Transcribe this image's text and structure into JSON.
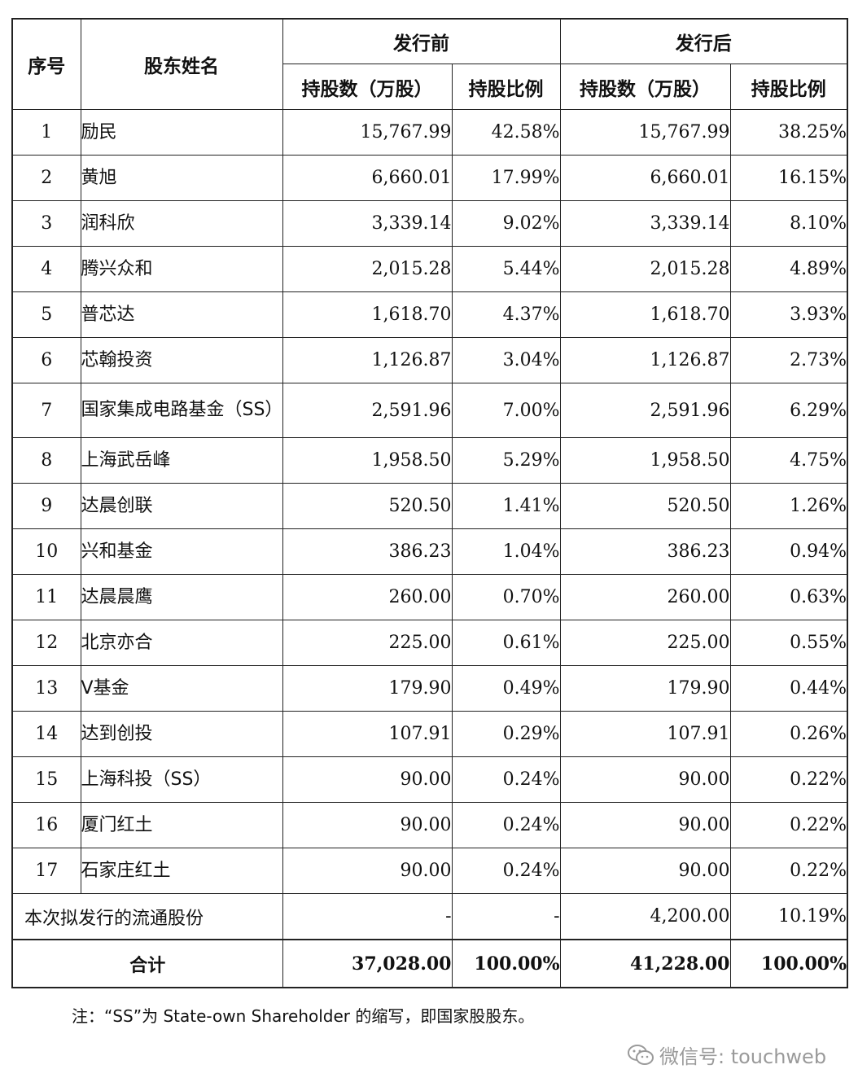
{
  "header": {
    "index_label": "序号",
    "name_label": "股东姓名",
    "before_label": "发行前",
    "after_label": "发行后",
    "shares_label": "持股数（万股）",
    "ratio_label": "持股比例"
  },
  "rows": [
    {
      "idx": "1",
      "name": "励民",
      "before_shares": "15,767.99",
      "before_ratio": "42.58%",
      "after_shares": "15,767.99",
      "after_ratio": "38.25%"
    },
    {
      "idx": "2",
      "name": "黄旭",
      "before_shares": "6,660.01",
      "before_ratio": "17.99%",
      "after_shares": "6,660.01",
      "after_ratio": "16.15%"
    },
    {
      "idx": "3",
      "name": "润科欣",
      "before_shares": "3,339.14",
      "before_ratio": "9.02%",
      "after_shares": "3,339.14",
      "after_ratio": "8.10%"
    },
    {
      "idx": "4",
      "name": "腾兴众和",
      "before_shares": "2,015.28",
      "before_ratio": "5.44%",
      "after_shares": "2,015.28",
      "after_ratio": "4.89%"
    },
    {
      "idx": "5",
      "name": "普芯达",
      "before_shares": "1,618.70",
      "before_ratio": "4.37%",
      "after_shares": "1,618.70",
      "after_ratio": "3.93%"
    },
    {
      "idx": "6",
      "name": "芯翰投资",
      "before_shares": "1,126.87",
      "before_ratio": "3.04%",
      "after_shares": "1,126.87",
      "after_ratio": "2.73%"
    },
    {
      "idx": "7",
      "name": "国家集成电路基金（SS）",
      "before_shares": "2,591.96",
      "before_ratio": "7.00%",
      "after_shares": "2,591.96",
      "after_ratio": "6.29%"
    },
    {
      "idx": "8",
      "name": "上海武岳峰",
      "before_shares": "1,958.50",
      "before_ratio": "5.29%",
      "after_shares": "1,958.50",
      "after_ratio": "4.75%"
    },
    {
      "idx": "9",
      "name": "达晨创联",
      "before_shares": "520.50",
      "before_ratio": "1.41%",
      "after_shares": "520.50",
      "after_ratio": "1.26%"
    },
    {
      "idx": "10",
      "name": "兴和基金",
      "before_shares": "386.23",
      "before_ratio": "1.04%",
      "after_shares": "386.23",
      "after_ratio": "0.94%"
    },
    {
      "idx": "11",
      "name": "达晨晨鹰",
      "before_shares": "260.00",
      "before_ratio": "0.70%",
      "after_shares": "260.00",
      "after_ratio": "0.63%"
    },
    {
      "idx": "12",
      "name": "北京亦合",
      "before_shares": "225.00",
      "before_ratio": "0.61%",
      "after_shares": "225.00",
      "after_ratio": "0.55%"
    },
    {
      "idx": "13",
      "name": "V基金",
      "before_shares": "179.90",
      "before_ratio": "0.49%",
      "after_shares": "179.90",
      "after_ratio": "0.44%"
    },
    {
      "idx": "14",
      "name": "达到创投",
      "before_shares": "107.91",
      "before_ratio": "0.29%",
      "after_shares": "107.91",
      "after_ratio": "0.26%"
    },
    {
      "idx": "15",
      "name": "上海科投（SS）",
      "before_shares": "90.00",
      "before_ratio": "0.24%",
      "after_shares": "90.00",
      "after_ratio": "0.22%"
    },
    {
      "idx": "16",
      "name": "厦门红土",
      "before_shares": "90.00",
      "before_ratio": "0.24%",
      "after_shares": "90.00",
      "after_ratio": "0.22%"
    },
    {
      "idx": "17",
      "name": "石家庄红土",
      "before_shares": "90.00",
      "before_ratio": "0.24%",
      "after_shares": "90.00",
      "after_ratio": "0.22%"
    }
  ],
  "circulating": {
    "label": "本次拟发行的流通股份",
    "before_shares": "-",
    "before_ratio": "-",
    "after_shares": "4,200.00",
    "after_ratio": "10.19%"
  },
  "total": {
    "label": "合计",
    "before_shares": "37,028.00",
    "before_ratio": "100.00%",
    "after_shares": "41,228.00",
    "after_ratio": "100.00%"
  },
  "note": "注：“SS”为 State-own Shareholder 的缩写，即国家股股东。",
  "watermark": {
    "text": "微信号: touchweb",
    "icon": "wechat-icon"
  }
}
